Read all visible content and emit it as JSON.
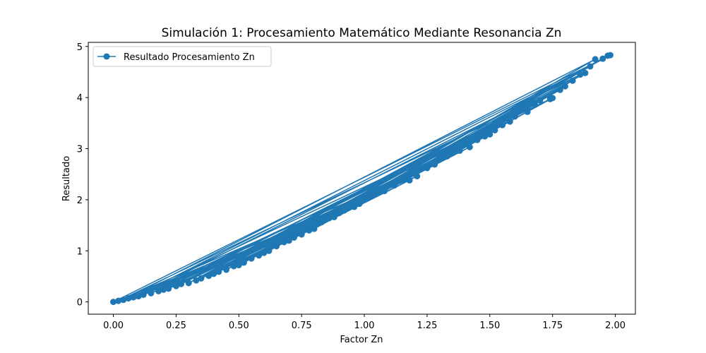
{
  "chart_data": {
    "type": "line",
    "title": "Simulación 1: Procesamiento Matemático Mediante Resonancia Zn",
    "xlabel": "Factor Zn",
    "ylabel": "Resultado",
    "xlim": [
      -0.1,
      2.08
    ],
    "ylim": [
      -0.24,
      5.08
    ],
    "x_ticks": [
      "0.00",
      "0.25",
      "0.50",
      "0.75",
      "1.00",
      "1.25",
      "1.50",
      "1.75",
      "2.00"
    ],
    "y_ticks": [
      "0",
      "1",
      "2",
      "3",
      "4",
      "5"
    ],
    "grid": false,
    "legend_position": "upper-left",
    "series": [
      {
        "name": "Resultado Procesamiento Zn",
        "color": "#1f77b4",
        "marker": "circle",
        "x": [
          0.0,
          1.98,
          0.3,
          1.52,
          0.75,
          1.21,
          0.04,
          1.92,
          0.52,
          1.05,
          0.22,
          1.74,
          0.96,
          0.1,
          1.86,
          0.45,
          1.33,
          0.68,
          1.6,
          0.15,
          1.12,
          0.38,
          1.95,
          0.83,
          1.45,
          0.27,
          1.68,
          0.58,
          1.28,
          0.02,
          1.8,
          0.72,
          1.0,
          0.33,
          1.55,
          0.9,
          0.08,
          1.9,
          0.62,
          1.16,
          0.42,
          1.38,
          0.18,
          1.7,
          0.8,
          1.25,
          0.5,
          1.97,
          0.35,
          1.48,
          0.65,
          1.08,
          0.2,
          1.78,
          0.92,
          0.48,
          1.63,
          0.25,
          1.35,
          0.78,
          1.88,
          0.55,
          1.02,
          0.12,
          1.58,
          0.7,
          1.18,
          0.4,
          1.83,
          0.86,
          1.3,
          0.6,
          1.65,
          0.3,
          1.42,
          0.98,
          0.06,
          1.75,
          0.88,
          1.5
        ],
        "y": [
          0.0,
          4.83,
          0.37,
          3.36,
          1.32,
          2.46,
          0.04,
          4.75,
          0.77,
          2.12,
          0.26,
          3.97,
          1.86,
          0.11,
          4.45,
          0.63,
          2.85,
          1.17,
          3.63,
          0.17,
          2.28,
          0.51,
          4.76,
          1.56,
          3.17,
          0.35,
          3.86,
          0.91,
          2.69,
          0.02,
          4.22,
          1.26,
          2.02,
          0.42,
          3.46,
          1.74,
          0.09,
          4.61,
          1.0,
          2.41,
          0.59,
          2.96,
          0.21,
          3.94,
          1.43,
          2.62,
          0.72,
          4.82,
          0.46,
          3.24,
          1.09,
          2.17,
          0.24,
          4.15,
          1.79,
          0.7,
          3.77,
          0.31,
          2.91,
          1.4,
          4.48,
          0.85,
          2.05,
          0.14,
          3.53,
          1.2,
          2.38,
          0.55,
          4.33,
          1.64,
          2.79,
          0.96,
          3.72,
          0.37,
          3.03,
          1.92,
          0.07,
          3.99,
          1.66,
          3.28
        ]
      }
    ]
  }
}
